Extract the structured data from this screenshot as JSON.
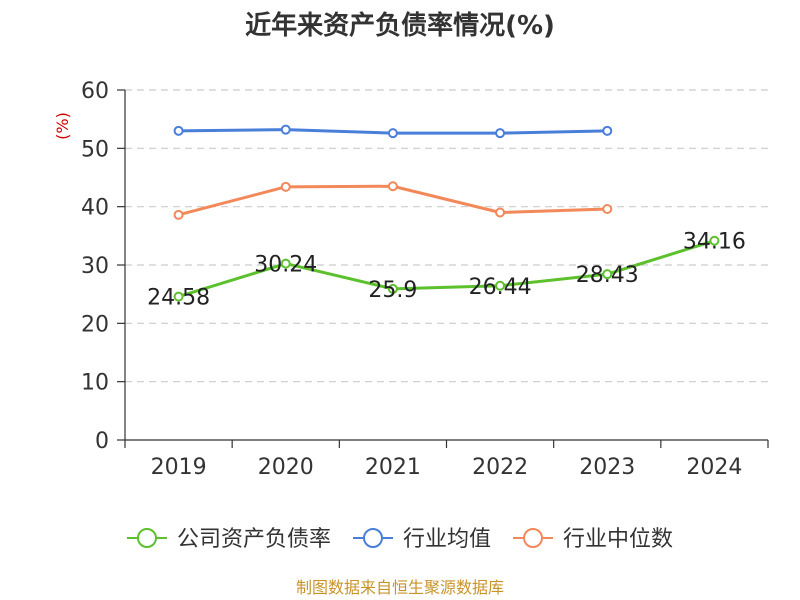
{
  "chart_data": {
    "type": "line",
    "title": "近年来资产负债率情况(%)",
    "xlabel": "",
    "ylabel": "(%)",
    "categories": [
      "2019",
      "2020",
      "2021",
      "2022",
      "2023",
      "2024"
    ],
    "ylim": [
      0,
      60
    ],
    "yticks": [
      0,
      10,
      20,
      30,
      40,
      50,
      60
    ],
    "grid": true,
    "legend_position": "bottom",
    "series": [
      {
        "name": "公司资产负债率",
        "color": "#5dc12e",
        "values": [
          24.58,
          30.24,
          25.9,
          26.44,
          28.43,
          34.16
        ],
        "labels": [
          "24.58",
          "30.24",
          "25.9",
          "26.44",
          "28.43",
          "34.16"
        ]
      },
      {
        "name": "行业均值",
        "color": "#4a7fd9",
        "values": [
          53.0,
          53.2,
          52.6,
          52.6,
          53.0,
          null
        ]
      },
      {
        "name": "行业中位数",
        "color": "#f3885a",
        "values": [
          38.6,
          43.4,
          43.5,
          39.0,
          39.6,
          null
        ]
      }
    ]
  },
  "source_text": "制图数据来自恒生聚源数据库",
  "colors": {
    "axis": "#333333",
    "grid": "#cccccc",
    "ylabel": "#cc0000",
    "source": "#c8942a"
  }
}
